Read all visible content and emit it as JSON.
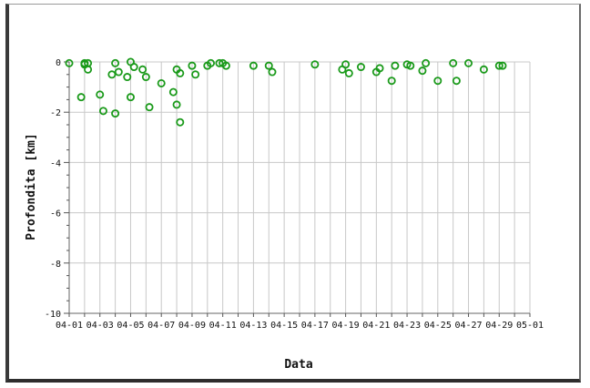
{
  "chart_data": {
    "type": "scatter",
    "xlabel": "Data",
    "ylabel": "Profondita [km]",
    "ylim": [
      -10,
      0
    ],
    "yticks": [
      0,
      -2,
      -4,
      -6,
      -8,
      -10
    ],
    "x_tick_labels": [
      "04-01",
      "04-03",
      "04-05",
      "04-07",
      "04-09",
      "04-11",
      "04-13",
      "04-15",
      "04-17",
      "04-19",
      "04-21",
      "04-23",
      "04-25",
      "04-27",
      "04-29",
      "05-01"
    ],
    "xlim_days": [
      1,
      31
    ],
    "grid": true,
    "marker_color": "#1a9a1a",
    "points": [
      {
        "x": "04-01",
        "y": -0.05
      },
      {
        "x": "04-02",
        "y": -0.1
      },
      {
        "x": "04-02",
        "y": -0.3
      },
      {
        "x": "04-02",
        "y": -1.4
      },
      {
        "x": "04-02",
        "y": -0.05
      },
      {
        "x": "04-02",
        "y": -0.05
      },
      {
        "x": "04-03",
        "y": -1.3
      },
      {
        "x": "04-03",
        "y": -1.95
      },
      {
        "x": "04-04",
        "y": -0.05
      },
      {
        "x": "04-04",
        "y": -0.4
      },
      {
        "x": "04-04",
        "y": -0.5
      },
      {
        "x": "04-04",
        "y": -2.05
      },
      {
        "x": "04-05",
        "y": -1.4
      },
      {
        "x": "04-05",
        "y": -0.2
      },
      {
        "x": "04-05",
        "y": -0.6
      },
      {
        "x": "04-05",
        "y": 0.0
      },
      {
        "x": "04-06",
        "y": -0.6
      },
      {
        "x": "04-06",
        "y": -1.8
      },
      {
        "x": "04-06",
        "y": -0.3
      },
      {
        "x": "04-07",
        "y": -0.85
      },
      {
        "x": "04-08",
        "y": -0.3
      },
      {
        "x": "04-08",
        "y": -0.45
      },
      {
        "x": "04-08",
        "y": -1.2
      },
      {
        "x": "04-08",
        "y": -1.7
      },
      {
        "x": "04-08",
        "y": -2.4
      },
      {
        "x": "04-09",
        "y": -0.15
      },
      {
        "x": "04-09",
        "y": -0.5
      },
      {
        "x": "04-10",
        "y": -0.15
      },
      {
        "x": "04-10",
        "y": -0.05
      },
      {
        "x": "04-11",
        "y": -0.05
      },
      {
        "x": "04-11",
        "y": -0.15
      },
      {
        "x": "04-11",
        "y": -0.05
      },
      {
        "x": "04-13",
        "y": -0.15
      },
      {
        "x": "04-14",
        "y": -0.15
      },
      {
        "x": "04-14",
        "y": -0.4
      },
      {
        "x": "04-17",
        "y": -0.1
      },
      {
        "x": "04-19",
        "y": -0.1
      },
      {
        "x": "04-19",
        "y": -0.45
      },
      {
        "x": "04-19",
        "y": -0.3
      },
      {
        "x": "04-20",
        "y": -0.2
      },
      {
        "x": "04-21",
        "y": -0.4
      },
      {
        "x": "04-21",
        "y": -0.25
      },
      {
        "x": "04-22",
        "y": -0.75
      },
      {
        "x": "04-22",
        "y": -0.15
      },
      {
        "x": "04-23",
        "y": -0.1
      },
      {
        "x": "04-23",
        "y": -0.15
      },
      {
        "x": "04-24",
        "y": -0.35
      },
      {
        "x": "04-24",
        "y": -0.05
      },
      {
        "x": "04-25",
        "y": -0.75
      },
      {
        "x": "04-26",
        "y": -0.05
      },
      {
        "x": "04-26",
        "y": -0.75
      },
      {
        "x": "04-27",
        "y": -0.05
      },
      {
        "x": "04-28",
        "y": -0.3
      },
      {
        "x": "04-29",
        "y": -0.15
      },
      {
        "x": "04-29",
        "y": -0.15
      }
    ]
  }
}
